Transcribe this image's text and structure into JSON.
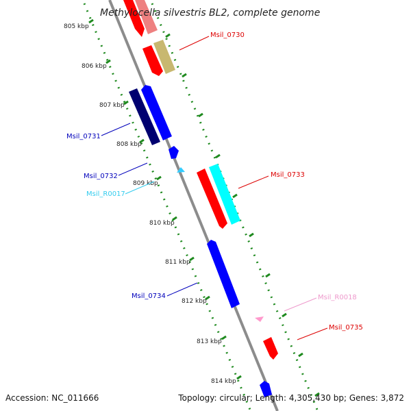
{
  "title": "Methylocella silvestris BL2, complete genome",
  "footer": {
    "accession": "Accession: NC_011666",
    "summary": "Topology: circular; Length: 4,305,430 bp; Genes: 3,872"
  },
  "kbp_labels": [
    "805 kbp",
    "806 kbp",
    "807 kbp",
    "808 kbp",
    "809 kbp",
    "810 kbp",
    "811 kbp",
    "812 kbp",
    "813 kbp",
    "814 kbp"
  ],
  "gene_labels": [
    {
      "id": "Msil_0730",
      "color": "#dd0000"
    },
    {
      "id": "Msil_0731",
      "color": "#0000bb"
    },
    {
      "id": "Msil_0732",
      "color": "#0000bb"
    },
    {
      "id": "Msil_R0017",
      "color": "#33ccee"
    },
    {
      "id": "Msil_0733",
      "color": "#dd0000"
    },
    {
      "id": "Msil_0734",
      "color": "#0000bb"
    },
    {
      "id": "Msil_R0018",
      "color": "#ee99cc"
    },
    {
      "id": "Msil_0735",
      "color": "#dd0000"
    }
  ],
  "colors": {
    "backbone": "#8c8c8c",
    "ticks": "#1f8a1f",
    "cds_red": "#ff0000",
    "cds_pink": "#ee8080",
    "cds_olive": "#c8b870",
    "cds_navy": "#000070",
    "cds_blue": "#0000ff",
    "cds_cyan": "#00ffff",
    "trna_cyan": "#33ccff",
    "rrna_pink": "#ff99cc"
  }
}
